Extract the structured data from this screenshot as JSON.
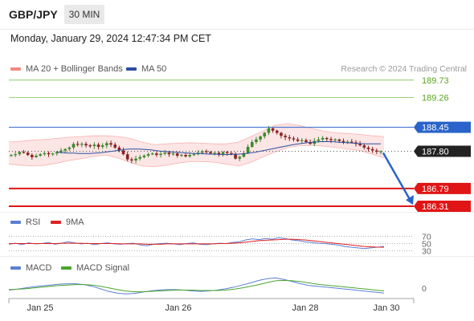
{
  "header": {
    "symbol": "GBP/JPY",
    "timeframe": "30 MIN"
  },
  "datetime": "Monday, January 29, 2024 12:47:34 PM CET",
  "legend": {
    "ma20": {
      "label": "MA 20 + Bollinger Bands",
      "color": "#f28b82"
    },
    "ma50": {
      "label": "MA 50",
      "color": "#2b4fa0"
    },
    "source": "Research © 2024 Trading Central"
  },
  "rsi_legend": {
    "rsi": "RSI",
    "rsi_color": "#5b7fd4",
    "ma": "9MA",
    "ma_color": "#e02020"
  },
  "macd_legend": {
    "macd": "MACD",
    "macd_color": "#5b7fd4",
    "signal": "MACD Signal",
    "signal_color": "#4aa52a"
  },
  "chart_data": [
    {
      "type": "candlestick",
      "title": "GBP/JPY",
      "x_ticks": [
        "Jan 25",
        "Jan 26",
        "Jan 28",
        "Jan 30"
      ],
      "ylim": [
        186.2,
        189.9
      ],
      "levels": [
        {
          "label": "189.73",
          "value": 189.73,
          "kind": "resistance",
          "color": "#7cc24a"
        },
        {
          "label": "189.26",
          "value": 189.26,
          "kind": "resistance",
          "color": "#7cc24a"
        },
        {
          "label": "188.45",
          "value": 188.45,
          "kind": "pivot",
          "color": "#2a63c9"
        },
        {
          "label": "187.80",
          "value": 187.8,
          "kind": "last",
          "color": "#222222"
        },
        {
          "label": "186.79",
          "value": 186.79,
          "kind": "support",
          "color": "#e01515"
        },
        {
          "label": "186.31",
          "value": 186.31,
          "kind": "support",
          "color": "#e01515"
        }
      ],
      "forecast": {
        "from": 187.8,
        "to": 186.35,
        "color": "#2a63c9"
      },
      "close_series": [
        187.7,
        187.72,
        187.78,
        187.76,
        187.7,
        187.64,
        187.68,
        187.72,
        187.75,
        187.72,
        187.74,
        187.78,
        187.82,
        187.86,
        187.9,
        188.0,
        187.98,
        188.0,
        187.96,
        187.94,
        187.98,
        187.92,
        187.96,
        188.02,
        187.98,
        187.9,
        187.82,
        187.72,
        187.58,
        187.55,
        187.6,
        187.64,
        187.68,
        187.72,
        187.74,
        187.7,
        187.73,
        187.76,
        187.72,
        187.74,
        187.68,
        187.7,
        187.66,
        187.7,
        187.72,
        187.76,
        187.8,
        187.78,
        187.74,
        187.76,
        187.72,
        187.78,
        187.75,
        187.72,
        187.6,
        187.65,
        187.75,
        187.92,
        188.05,
        188.12,
        188.2,
        188.3,
        188.42,
        188.36,
        188.3,
        188.22,
        188.18,
        188.15,
        188.12,
        188.08,
        188.1,
        188.05,
        188.0,
        188.08,
        188.12,
        188.16,
        188.13,
        188.1,
        188.12,
        188.08,
        188.05,
        188.06,
        188.04,
        188.0,
        187.96,
        187.9,
        187.86,
        187.82,
        187.79,
        187.8
      ],
      "ma50_series": [
        187.78,
        187.76,
        187.75,
        187.75,
        187.74,
        187.74,
        187.74,
        187.75,
        187.76,
        187.78,
        187.8,
        187.82,
        187.84,
        187.86,
        187.86,
        187.86,
        187.85,
        187.84,
        187.82,
        187.8,
        187.79,
        187.78,
        187.77,
        187.76,
        187.75,
        187.74,
        187.74,
        187.73,
        187.72,
        187.72,
        187.71,
        187.71,
        187.72,
        187.72,
        187.73,
        187.75,
        187.77,
        187.8,
        187.83,
        187.86,
        187.89,
        187.92,
        187.95,
        187.98,
        188.0,
        188.02,
        188.04,
        188.05,
        188.06,
        188.06,
        188.06,
        188.05,
        188.04,
        188.03,
        188.02,
        188.01,
        188.0,
        188.0,
        188.0,
        188.0
      ],
      "bb_upper": [
        188.05,
        188.07,
        188.1,
        188.12,
        188.15,
        188.18,
        188.2,
        188.22,
        188.22,
        188.2,
        188.15,
        188.05,
        187.98,
        188.0,
        188.02,
        188.03,
        188.02,
        188.0,
        188.0,
        188.05,
        188.2,
        188.35,
        188.5,
        188.55,
        188.5,
        188.42,
        188.35,
        188.3,
        188.28,
        188.26,
        188.22,
        188.2
      ],
      "bb_lower": [
        187.45,
        187.42,
        187.4,
        187.42,
        187.48,
        187.55,
        187.6,
        187.66,
        187.7,
        187.62,
        187.5,
        187.4,
        187.38,
        187.42,
        187.48,
        187.52,
        187.52,
        187.5,
        187.45,
        187.4,
        187.5,
        187.65,
        187.78,
        187.9,
        187.95,
        187.96,
        187.94,
        187.9,
        187.86,
        187.82,
        187.72,
        187.62
      ]
    },
    {
      "type": "line",
      "title": "RSI",
      "y_ticks": [
        "70",
        "50",
        "30"
      ],
      "ylim": [
        20,
        80
      ],
      "series": [
        {
          "name": "RSI",
          "values": [
            48,
            51,
            47,
            52,
            49,
            50,
            53,
            48,
            51,
            55,
            52,
            49,
            51,
            47,
            50,
            52,
            49,
            48,
            50,
            51,
            46,
            44,
            48,
            50,
            51,
            49,
            47,
            50,
            52,
            48,
            47,
            49,
            51,
            50,
            53,
            55,
            60,
            63,
            61,
            64,
            62,
            66,
            64,
            60,
            58,
            55,
            53,
            51,
            50,
            48,
            46,
            42,
            40,
            38,
            36,
            38,
            40,
            42
          ]
        },
        {
          "name": "9MA",
          "values": [
            50,
            50,
            50,
            50,
            50,
            50,
            50,
            50,
            51,
            51,
            51,
            51,
            50,
            50,
            50,
            50,
            50,
            49,
            49,
            49,
            49,
            48,
            48,
            48,
            49,
            49,
            49,
            49,
            49,
            49,
            49,
            49,
            50,
            50,
            51,
            52,
            54,
            56,
            58,
            59,
            60,
            61,
            62,
            62,
            61,
            60,
            58,
            56,
            54,
            52,
            50,
            48,
            46,
            44,
            42,
            41,
            40,
            40
          ]
        }
      ]
    },
    {
      "type": "line",
      "title": "MACD",
      "y_ticks": [
        "0"
      ],
      "ylim": [
        -0.25,
        0.32
      ],
      "series": [
        {
          "name": "MACD",
          "values": [
            -0.05,
            -0.03,
            0.0,
            0.03,
            0.05,
            0.07,
            0.09,
            0.1,
            0.1,
            0.08,
            0.04,
            -0.02,
            -0.08,
            -0.12,
            -0.14,
            -0.13,
            -0.1,
            -0.07,
            -0.05,
            -0.04,
            -0.04,
            -0.05,
            -0.07,
            -0.08,
            -0.07,
            -0.05,
            -0.02,
            0.02,
            0.07,
            0.12,
            0.18,
            0.22,
            0.24,
            0.2,
            0.15,
            0.1,
            0.06,
            0.04,
            0.02,
            0.0,
            -0.02,
            -0.04,
            -0.06,
            -0.08,
            -0.1,
            -0.12
          ]
        },
        {
          "name": "MACD Signal",
          "values": [
            -0.04,
            -0.03,
            -0.02,
            0.0,
            0.02,
            0.04,
            0.06,
            0.07,
            0.08,
            0.08,
            0.07,
            0.04,
            0.0,
            -0.04,
            -0.07,
            -0.09,
            -0.09,
            -0.08,
            -0.07,
            -0.06,
            -0.05,
            -0.05,
            -0.05,
            -0.06,
            -0.06,
            -0.06,
            -0.05,
            -0.03,
            0.0,
            0.04,
            0.08,
            0.13,
            0.17,
            0.18,
            0.17,
            0.15,
            0.12,
            0.09,
            0.07,
            0.05,
            0.03,
            0.01,
            -0.01,
            -0.03,
            -0.05,
            -0.07
          ]
        }
      ]
    }
  ]
}
